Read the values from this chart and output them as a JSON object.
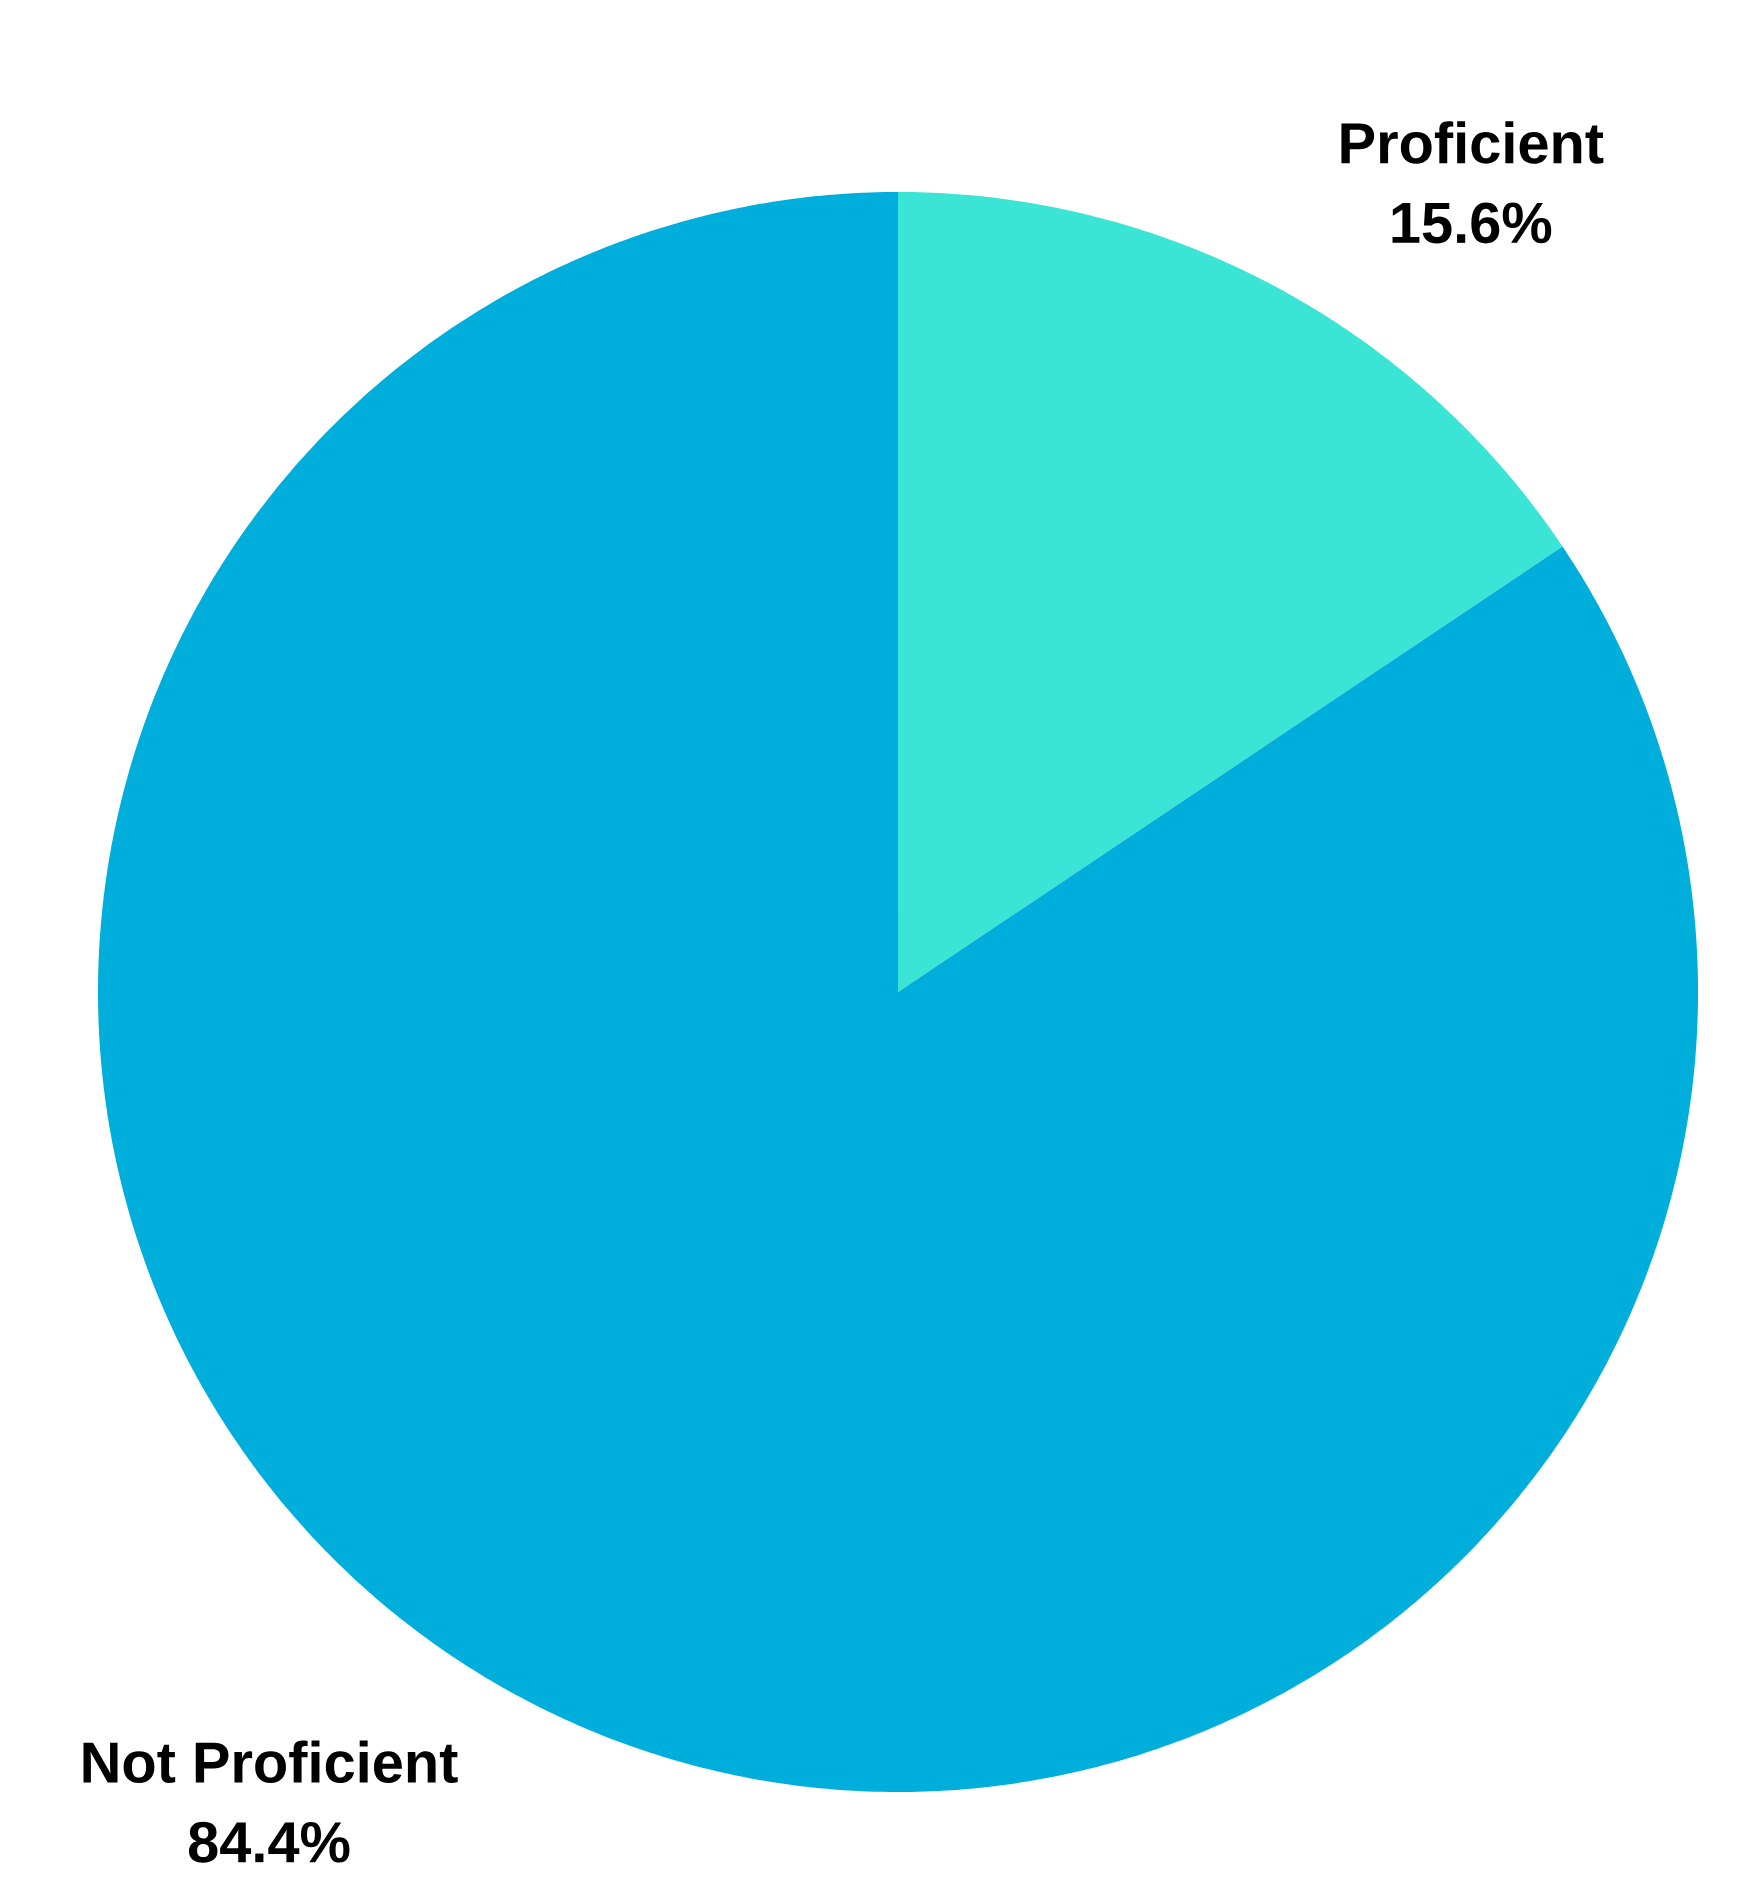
{
  "chart_data": {
    "type": "pie",
    "categories": [
      "Proficient",
      "Not Proficient"
    ],
    "values": [
      15.6,
      84.4
    ],
    "value_labels": [
      "15.6%",
      "84.4%"
    ],
    "colors": [
      "#3ae5d6",
      "#00aedc"
    ]
  }
}
